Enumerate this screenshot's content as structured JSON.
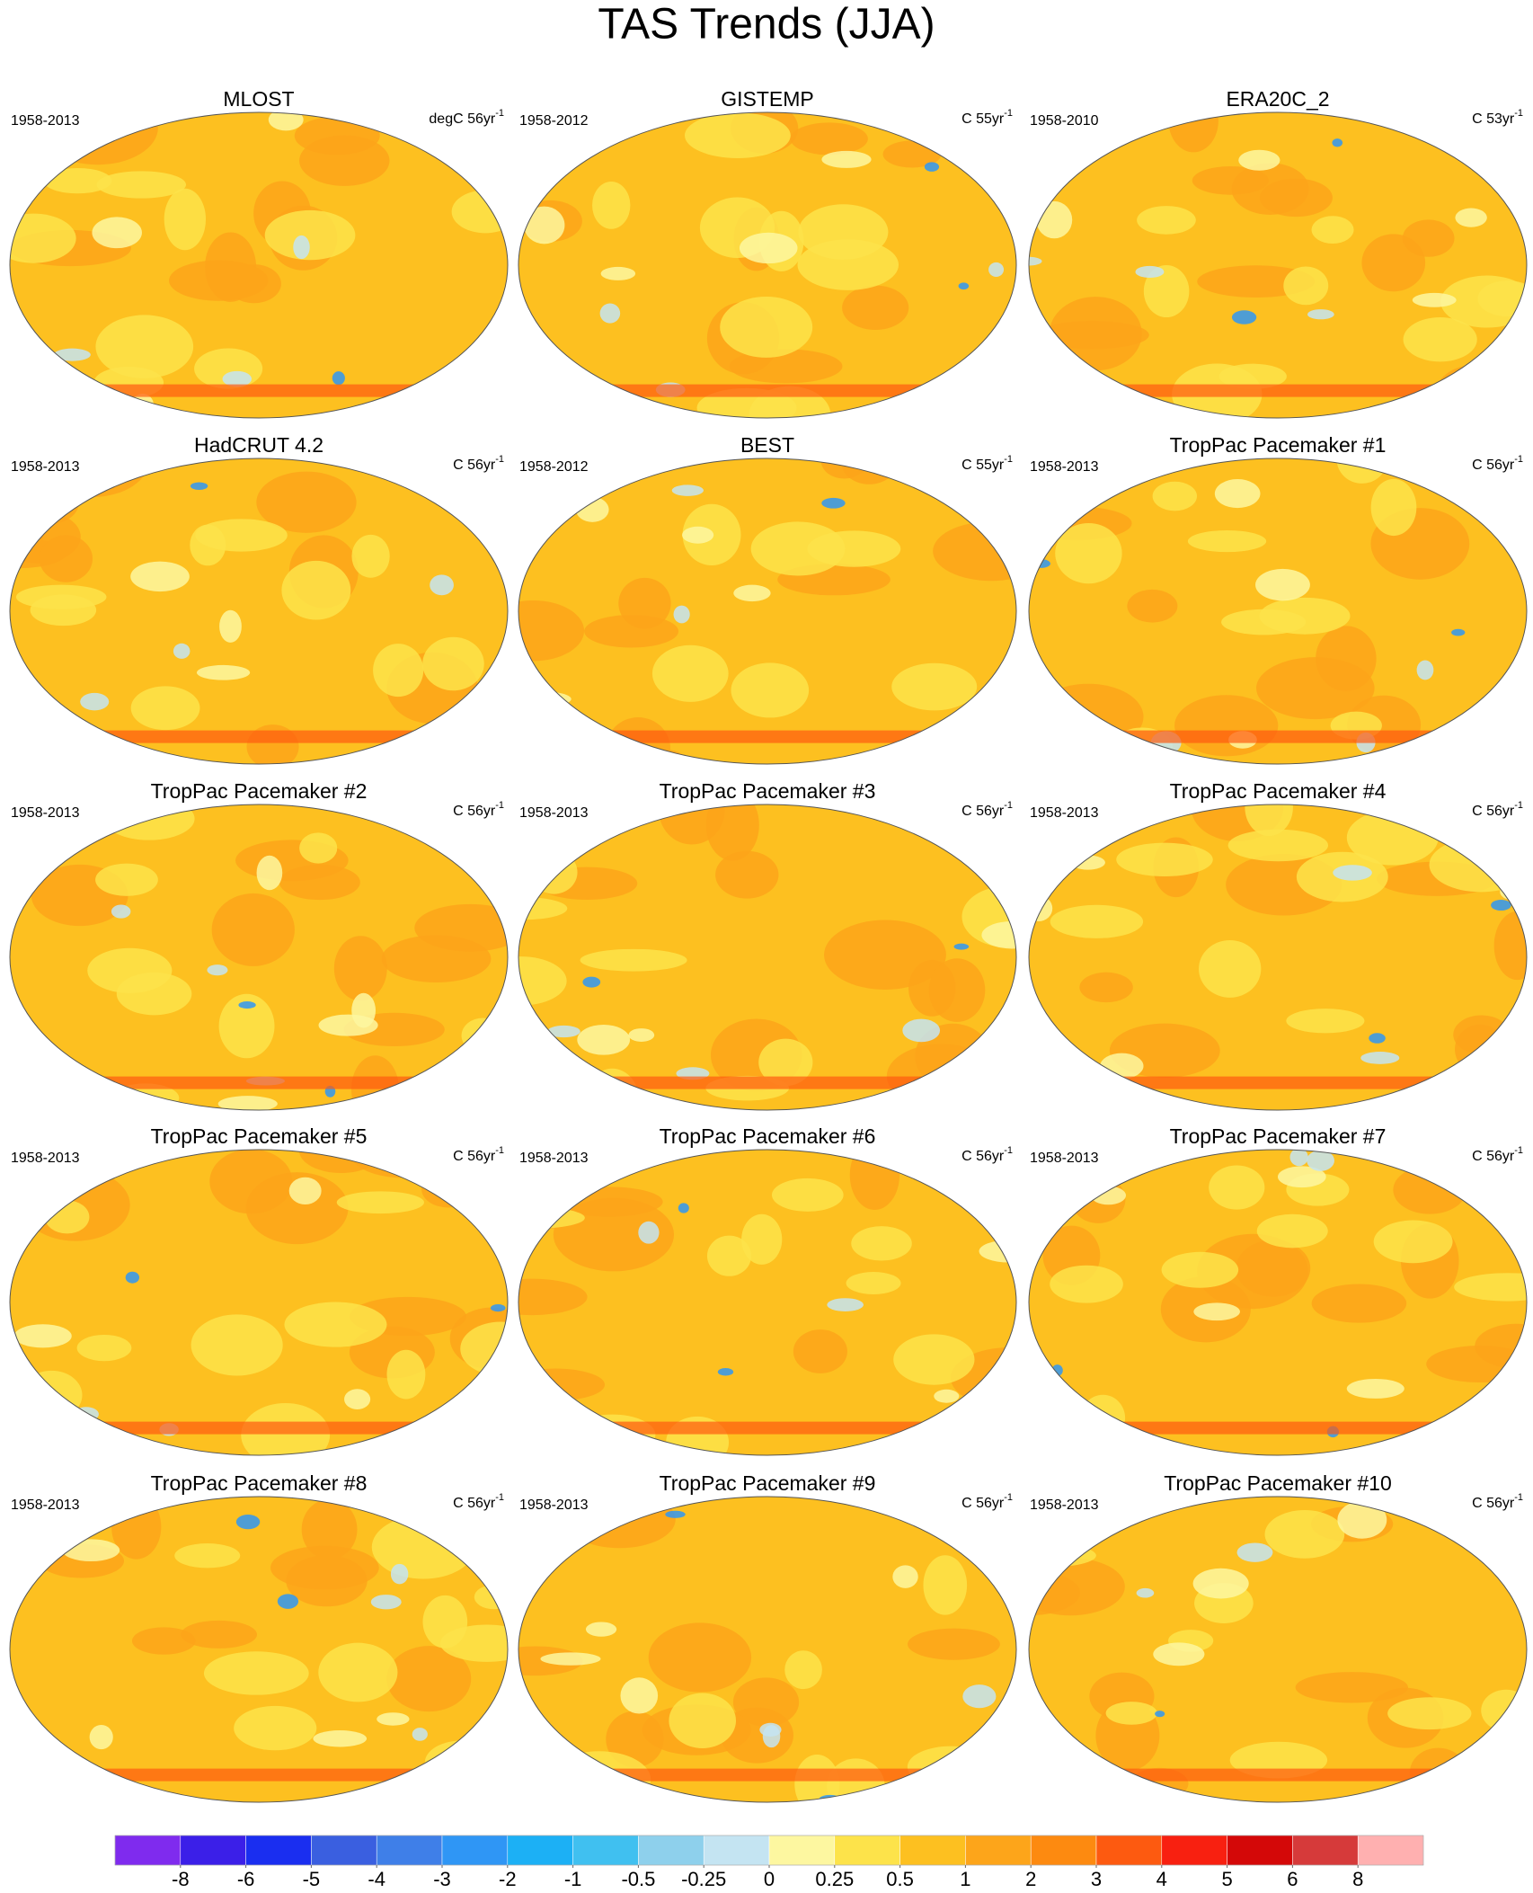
{
  "title": "TAS Trends (JJA)",
  "panels": [
    {
      "title": "MLOST",
      "period": "1958-2013",
      "units": {
        "text": "degC 56yr",
        "exponent": "-1"
      }
    },
    {
      "title": "GISTEMP",
      "period": "1958-2012",
      "units": {
        "text": "C 55yr",
        "exponent": "-1"
      }
    },
    {
      "title": "ERA20C_2",
      "period": "1958-2010",
      "units": {
        "text": "C 53yr",
        "exponent": "-1"
      }
    },
    {
      "title": "HadCRUT 4.2",
      "period": "1958-2013",
      "units": {
        "text": "C 56yr",
        "exponent": "-1"
      }
    },
    {
      "title": "BEST",
      "period": "1958-2012",
      "units": {
        "text": "C 55yr",
        "exponent": "-1"
      }
    },
    {
      "title": "TropPac Pacemaker #1",
      "period": "1958-2013",
      "units": {
        "text": "C 56yr",
        "exponent": "-1"
      }
    },
    {
      "title": "TropPac Pacemaker #2",
      "period": "1958-2013",
      "units": {
        "text": "C 56yr",
        "exponent": "-1"
      }
    },
    {
      "title": "TropPac Pacemaker #3",
      "period": "1958-2013",
      "units": {
        "text": "C 56yr",
        "exponent": "-1"
      }
    },
    {
      "title": "TropPac Pacemaker #4",
      "period": "1958-2013",
      "units": {
        "text": "C 56yr",
        "exponent": "-1"
      }
    },
    {
      "title": "TropPac Pacemaker #5",
      "period": "1958-2013",
      "units": {
        "text": "C 56yr",
        "exponent": "-1"
      }
    },
    {
      "title": "TropPac Pacemaker #6",
      "period": "1958-2013",
      "units": {
        "text": "C 56yr",
        "exponent": "-1"
      }
    },
    {
      "title": "TropPac Pacemaker #7",
      "period": "1958-2013",
      "units": {
        "text": "C 56yr",
        "exponent": "-1"
      }
    },
    {
      "title": "TropPac Pacemaker #8",
      "period": "1958-2013",
      "units": {
        "text": "C 56yr",
        "exponent": "-1"
      }
    },
    {
      "title": "TropPac Pacemaker #9",
      "period": "1958-2013",
      "units": {
        "text": "C 56yr",
        "exponent": "-1"
      }
    },
    {
      "title": "TropPac Pacemaker #10",
      "period": "1958-2013",
      "units": {
        "text": "C 56yr",
        "exponent": "-1"
      }
    }
  ],
  "colorbar": {
    "levels": [
      -8,
      -6,
      -5,
      -4,
      -3,
      -2,
      -1,
      -0.5,
      -0.25,
      0,
      0.25,
      0.5,
      1,
      2,
      3,
      4,
      5,
      6,
      8
    ],
    "colors": [
      "#7f2bee",
      "#3b1fe8",
      "#1a2ef0",
      "#3a5fe0",
      "#3f7fe8",
      "#2f96f5",
      "#1cb0f5",
      "#40c0f0",
      "#8ed0ec",
      "#c4e4f2",
      "#fdf7a0",
      "#fde34a",
      "#fdc020",
      "#fda51a",
      "#fd8a10",
      "#fd5a10",
      "#f82010",
      "#d40808",
      "#d63a3a",
      "#ffb0b0"
    ]
  }
}
